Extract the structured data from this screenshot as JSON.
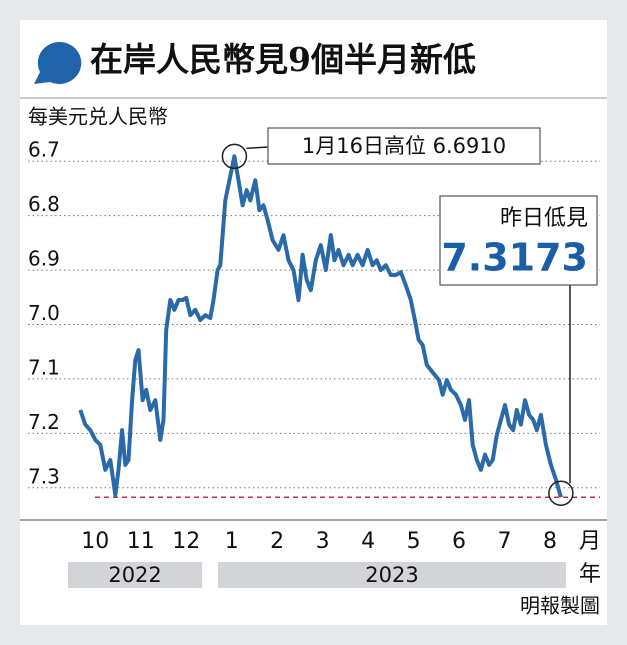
{
  "chart_data": {
    "type": "line",
    "title": "在岸人民幣見9個半月新低",
    "ylabel": "每美元兑人民幣",
    "xlabel": "月",
    "year_label": "年",
    "source": "明報製圖",
    "years": [
      "2022",
      "2023"
    ],
    "inverted": true,
    "grid": true,
    "color": "#2b6aa8",
    "xlim": [
      9.4,
      21.1
    ],
    "xticks": [
      10,
      11,
      12,
      {
        "value": 13,
        "label": "1"
      },
      {
        "value": 14,
        "label": "2"
      },
      {
        "value": 15,
        "label": "3"
      },
      {
        "value": 16,
        "label": "4"
      },
      {
        "value": 17,
        "label": "5"
      },
      {
        "value": 18,
        "label": "6"
      },
      {
        "value": 19,
        "label": "7"
      },
      {
        "value": 20,
        "label": "8"
      }
    ],
    "ylim": [
      6.65,
      7.35
    ],
    "yticks": [
      6.7,
      6.8,
      6.9,
      {
        "value": 7.0,
        "label": "7.0"
      },
      7.1,
      7.2,
      7.3
    ],
    "x": [
      9.67,
      9.78,
      9.89,
      10,
      10.11,
      10.22,
      10.33,
      10.44,
      10.51,
      10.59,
      10.66,
      10.73,
      10.81,
      10.88,
      10.95,
      11.04,
      11.12,
      11.21,
      11.32,
      11.43,
      11.5,
      11.56,
      11.65,
      11.74,
      11.83,
      11.92,
      12,
      12.09,
      12.2,
      12.31,
      12.42,
      12.53,
      12.6,
      12.69,
      12.75,
      12.86,
      12.95,
      13.06,
      13.15,
      13.24,
      13.33,
      13.41,
      13.52,
      13.61,
      13.7,
      13.79,
      13.9,
      14.03,
      14.14,
      14.25,
      14.36,
      14.47,
      14.56,
      14.65,
      14.74,
      14.85,
      14.96,
      15.07,
      15.18,
      15.26,
      15.35,
      15.46,
      15.57,
      15.66,
      15.77,
      15.88,
      15.99,
      16.1,
      16.19,
      16.28,
      16.39,
      16.5,
      16.61,
      16.72,
      16.83,
      16.94,
      17.03,
      17.11,
      17.2,
      17.29,
      17.38,
      17.47,
      17.56,
      17.64,
      17.73,
      17.82,
      17.93,
      18.04,
      18.13,
      18.22,
      18.3,
      18.39,
      18.48,
      18.57,
      18.66,
      18.74,
      18.83,
      18.92,
      19.01,
      19.1,
      19.19,
      19.27,
      19.36,
      19.45,
      19.54,
      19.63,
      19.71,
      19.8,
      19.91,
      20.02,
      20.13,
      20.24
    ],
    "values": [
      7.157,
      7.184,
      7.194,
      7.212,
      7.221,
      7.267,
      7.249,
      7.313,
      7.267,
      7.194,
      7.258,
      7.249,
      7.139,
      7.065,
      7.047,
      7.139,
      7.12,
      7.157,
      7.139,
      7.212,
      7.175,
      7.01,
      6.955,
      6.973,
      6.955,
      6.955,
      6.951,
      6.983,
      6.973,
      6.992,
      6.983,
      6.988,
      6.955,
      6.9,
      6.891,
      6.772,
      6.735,
      6.691,
      6.735,
      6.781,
      6.753,
      6.772,
      6.735,
      6.79,
      6.781,
      6.808,
      6.845,
      6.863,
      6.836,
      6.882,
      6.9,
      6.955,
      6.872,
      6.918,
      6.937,
      6.882,
      6.854,
      6.9,
      6.836,
      6.882,
      6.863,
      6.891,
      6.872,
      6.891,
      6.872,
      6.891,
      6.863,
      6.891,
      6.882,
      6.9,
      6.891,
      6.909,
      6.909,
      6.904,
      6.928,
      6.955,
      6.992,
      7.028,
      7.038,
      7.074,
      7.084,
      7.093,
      7.102,
      7.129,
      7.102,
      7.12,
      7.129,
      7.148,
      7.175,
      7.139,
      7.221,
      7.249,
      7.267,
      7.239,
      7.258,
      7.249,
      7.203,
      7.175,
      7.148,
      7.184,
      7.194,
      7.157,
      7.184,
      7.139,
      7.166,
      7.175,
      7.194,
      7.166,
      7.221,
      7.258,
      7.285,
      7.3173
    ],
    "annotations": [
      {
        "text": "1月16日高位 6.6910",
        "x": 13.06,
        "value": 6.691
      },
      {
        "label": "昨日低見",
        "x": 20.24,
        "value": 7.3173
      }
    ]
  }
}
